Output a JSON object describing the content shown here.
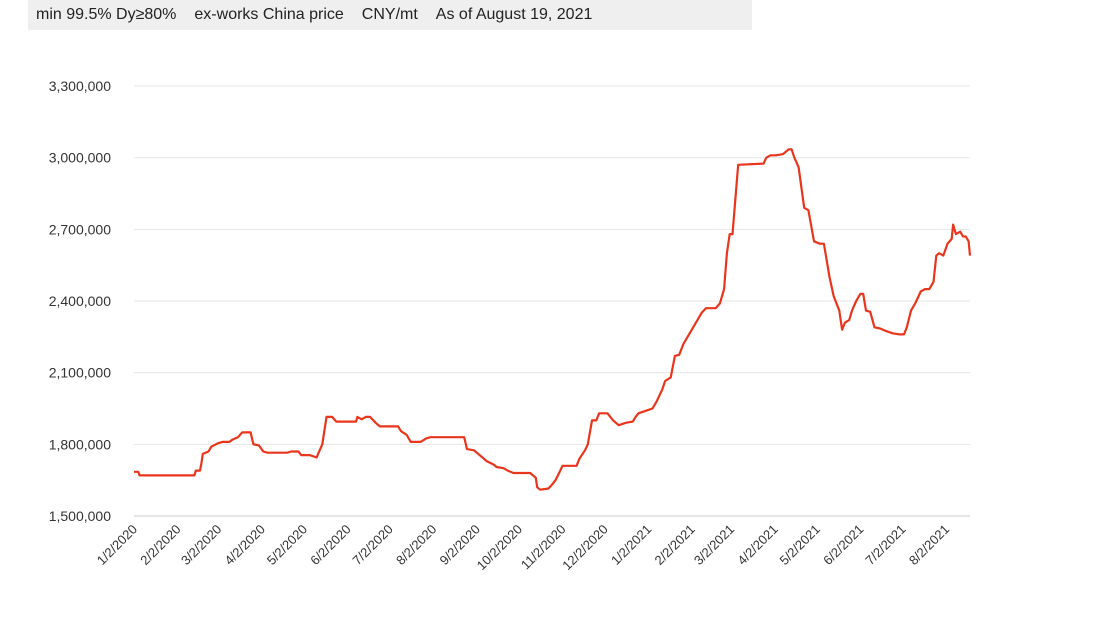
{
  "header": {
    "spec": "min 99.5% Dy≥80%",
    "basis": "ex-works China price",
    "unit": "CNY/mt",
    "as_of": "As of August 19, 2021"
  },
  "chart_data": {
    "type": "line",
    "title": "",
    "xlabel": "",
    "ylabel": "",
    "ylim": [
      1500000,
      3300000
    ],
    "yticks": [
      1500000,
      1800000,
      2100000,
      2400000,
      2700000,
      3000000,
      3300000
    ],
    "ytick_labels": [
      "1,500,000",
      "1,800,000",
      "2,100,000",
      "2,400,000",
      "2,700,000",
      "3,000,000",
      "3,300,000"
    ],
    "xlim": [
      "2020-01-02",
      "2021-08-19"
    ],
    "xtick_labels": [
      "1/2/2020",
      "2/2/2020",
      "3/2/2020",
      "4/2/2020",
      "5/2/2020",
      "6/2/2020",
      "7/2/2020",
      "8/2/2020",
      "9/2/2020",
      "10/2/2020",
      "11/2/2020",
      "12/2/2020",
      "1/2/2021",
      "2/2/2021",
      "3/2/2021",
      "4/2/2021",
      "5/2/2021",
      "6/2/2021",
      "7/2/2021",
      "8/2/2021"
    ],
    "xtick_dates": [
      "2020-01-02",
      "2020-02-02",
      "2020-03-02",
      "2020-04-02",
      "2020-05-02",
      "2020-06-02",
      "2020-07-02",
      "2020-08-02",
      "2020-09-02",
      "2020-10-02",
      "2020-11-02",
      "2020-12-02",
      "2021-01-02",
      "2021-02-02",
      "2021-03-02",
      "2021-04-02",
      "2021-05-02",
      "2021-06-02",
      "2021-07-02",
      "2021-08-02"
    ],
    "grid": "horizontal",
    "legend": "none",
    "series": [
      {
        "color": "#e8351c",
        "points": [
          [
            "2020-01-02",
            1685000
          ],
          [
            "2020-01-05",
            1685000
          ],
          [
            "2020-01-06",
            1670000
          ],
          [
            "2020-01-31",
            1670000
          ],
          [
            "2020-02-10",
            1670000
          ],
          [
            "2020-02-14",
            1670000
          ],
          [
            "2020-02-15",
            1690000
          ],
          [
            "2020-02-18",
            1690000
          ],
          [
            "2020-02-19",
            1720000
          ],
          [
            "2020-02-20",
            1760000
          ],
          [
            "2020-02-24",
            1770000
          ],
          [
            "2020-02-26",
            1790000
          ],
          [
            "2020-03-02",
            1805000
          ],
          [
            "2020-03-05",
            1810000
          ],
          [
            "2020-03-10",
            1810000
          ],
          [
            "2020-03-12",
            1820000
          ],
          [
            "2020-03-16",
            1830000
          ],
          [
            "2020-03-19",
            1850000
          ],
          [
            "2020-03-25",
            1850000
          ],
          [
            "2020-03-27",
            1800000
          ],
          [
            "2020-03-31",
            1795000
          ],
          [
            "2020-04-03",
            1770000
          ],
          [
            "2020-04-06",
            1765000
          ],
          [
            "2020-04-20",
            1765000
          ],
          [
            "2020-04-23",
            1770000
          ],
          [
            "2020-04-28",
            1770000
          ],
          [
            "2020-04-30",
            1755000
          ],
          [
            "2020-05-06",
            1755000
          ],
          [
            "2020-05-11",
            1745000
          ],
          [
            "2020-05-12",
            1760000
          ],
          [
            "2020-05-15",
            1800000
          ],
          [
            "2020-05-18",
            1915000
          ],
          [
            "2020-05-22",
            1915000
          ],
          [
            "2020-05-25",
            1895000
          ],
          [
            "2020-06-08",
            1895000
          ],
          [
            "2020-06-09",
            1915000
          ],
          [
            "2020-06-12",
            1905000
          ],
          [
            "2020-06-15",
            1915000
          ],
          [
            "2020-06-18",
            1915000
          ],
          [
            "2020-06-22",
            1890000
          ],
          [
            "2020-06-25",
            1875000
          ],
          [
            "2020-07-08",
            1875000
          ],
          [
            "2020-07-10",
            1855000
          ],
          [
            "2020-07-14",
            1840000
          ],
          [
            "2020-07-17",
            1810000
          ],
          [
            "2020-07-24",
            1810000
          ],
          [
            "2020-07-28",
            1825000
          ],
          [
            "2020-07-31",
            1830000
          ],
          [
            "2020-08-20",
            1830000
          ],
          [
            "2020-08-24",
            1830000
          ],
          [
            "2020-08-26",
            1780000
          ],
          [
            "2020-08-31",
            1775000
          ],
          [
            "2020-09-04",
            1755000
          ],
          [
            "2020-09-09",
            1730000
          ],
          [
            "2020-09-14",
            1715000
          ],
          [
            "2020-09-16",
            1705000
          ],
          [
            "2020-09-21",
            1700000
          ],
          [
            "2020-09-24",
            1690000
          ],
          [
            "2020-09-28",
            1680000
          ],
          [
            "2020-10-10",
            1680000
          ],
          [
            "2020-10-14",
            1660000
          ],
          [
            "2020-10-15",
            1620000
          ],
          [
            "2020-10-17",
            1610000
          ],
          [
            "2020-10-23",
            1615000
          ],
          [
            "2020-10-26",
            1635000
          ],
          [
            "2020-10-28",
            1650000
          ],
          [
            "2020-10-31",
            1685000
          ],
          [
            "2020-11-02",
            1710000
          ],
          [
            "2020-11-12",
            1710000
          ],
          [
            "2020-11-14",
            1740000
          ],
          [
            "2020-11-18",
            1775000
          ],
          [
            "2020-11-20",
            1800000
          ],
          [
            "2020-11-23",
            1900000
          ],
          [
            "2020-11-26",
            1900000
          ],
          [
            "2020-11-28",
            1930000
          ],
          [
            "2020-12-04",
            1930000
          ],
          [
            "2020-12-08",
            1900000
          ],
          [
            "2020-12-12",
            1880000
          ],
          [
            "2020-12-17",
            1890000
          ],
          [
            "2020-12-22",
            1895000
          ],
          [
            "2020-12-24",
            1915000
          ],
          [
            "2020-12-26",
            1930000
          ],
          [
            "2020-12-31",
            1940000
          ],
          [
            "2021-01-05",
            1950000
          ],
          [
            "2021-01-08",
            1980000
          ],
          [
            "2021-01-12",
            2030000
          ],
          [
            "2021-01-14",
            2065000
          ],
          [
            "2021-01-18",
            2080000
          ],
          [
            "2021-01-21",
            2170000
          ],
          [
            "2021-01-24",
            2175000
          ],
          [
            "2021-01-27",
            2220000
          ],
          [
            "2021-02-01",
            2270000
          ],
          [
            "2021-02-05",
            2310000
          ],
          [
            "2021-02-09",
            2350000
          ],
          [
            "2021-02-12",
            2370000
          ],
          [
            "2021-02-19",
            2370000
          ],
          [
            "2021-02-22",
            2390000
          ],
          [
            "2021-02-25",
            2450000
          ],
          [
            "2021-02-27",
            2600000
          ],
          [
            "2021-03-01",
            2680000
          ],
          [
            "2021-03-03",
            2680000
          ],
          [
            "2021-03-06",
            2900000
          ],
          [
            "2021-03-07",
            2970000
          ],
          [
            "2021-03-25",
            2975000
          ],
          [
            "2021-03-27",
            3000000
          ],
          [
            "2021-03-30",
            3010000
          ],
          [
            "2021-04-03",
            3010000
          ],
          [
            "2021-04-08",
            3015000
          ],
          [
            "2021-04-12",
            3035000
          ],
          [
            "2021-04-14",
            3035000
          ],
          [
            "2021-04-16",
            3000000
          ],
          [
            "2021-04-19",
            2960000
          ],
          [
            "2021-04-23",
            2790000
          ],
          [
            "2021-04-26",
            2780000
          ],
          [
            "2021-04-30",
            2650000
          ],
          [
            "2021-05-04",
            2640000
          ],
          [
            "2021-05-07",
            2640000
          ],
          [
            "2021-05-11",
            2500000
          ],
          [
            "2021-05-14",
            2420000
          ],
          [
            "2021-05-18",
            2360000
          ],
          [
            "2021-05-20",
            2280000
          ],
          [
            "2021-05-22",
            2310000
          ],
          [
            "2021-05-25",
            2320000
          ],
          [
            "2021-05-27",
            2360000
          ],
          [
            "2021-05-30",
            2400000
          ],
          [
            "2021-06-02",
            2430000
          ],
          [
            "2021-06-04",
            2430000
          ],
          [
            "2021-06-06",
            2360000
          ],
          [
            "2021-06-09",
            2355000
          ],
          [
            "2021-06-12",
            2290000
          ],
          [
            "2021-06-16",
            2285000
          ],
          [
            "2021-06-20",
            2275000
          ],
          [
            "2021-06-25",
            2265000
          ],
          [
            "2021-06-30",
            2260000
          ],
          [
            "2021-07-03",
            2260000
          ],
          [
            "2021-07-05",
            2290000
          ],
          [
            "2021-07-08",
            2360000
          ],
          [
            "2021-07-11",
            2390000
          ],
          [
            "2021-07-15",
            2440000
          ],
          [
            "2021-07-18",
            2450000
          ],
          [
            "2021-07-21",
            2450000
          ],
          [
            "2021-07-24",
            2480000
          ],
          [
            "2021-07-26",
            2590000
          ],
          [
            "2021-07-28",
            2600000
          ],
          [
            "2021-07-31",
            2590000
          ],
          [
            "2021-08-03",
            2640000
          ],
          [
            "2021-08-06",
            2660000
          ],
          [
            "2021-08-07",
            2720000
          ],
          [
            "2021-08-09",
            2680000
          ],
          [
            "2021-08-12",
            2690000
          ],
          [
            "2021-08-14",
            2670000
          ],
          [
            "2021-08-16",
            2670000
          ],
          [
            "2021-08-18",
            2650000
          ],
          [
            "2021-08-19",
            2590000
          ]
        ]
      }
    ]
  }
}
